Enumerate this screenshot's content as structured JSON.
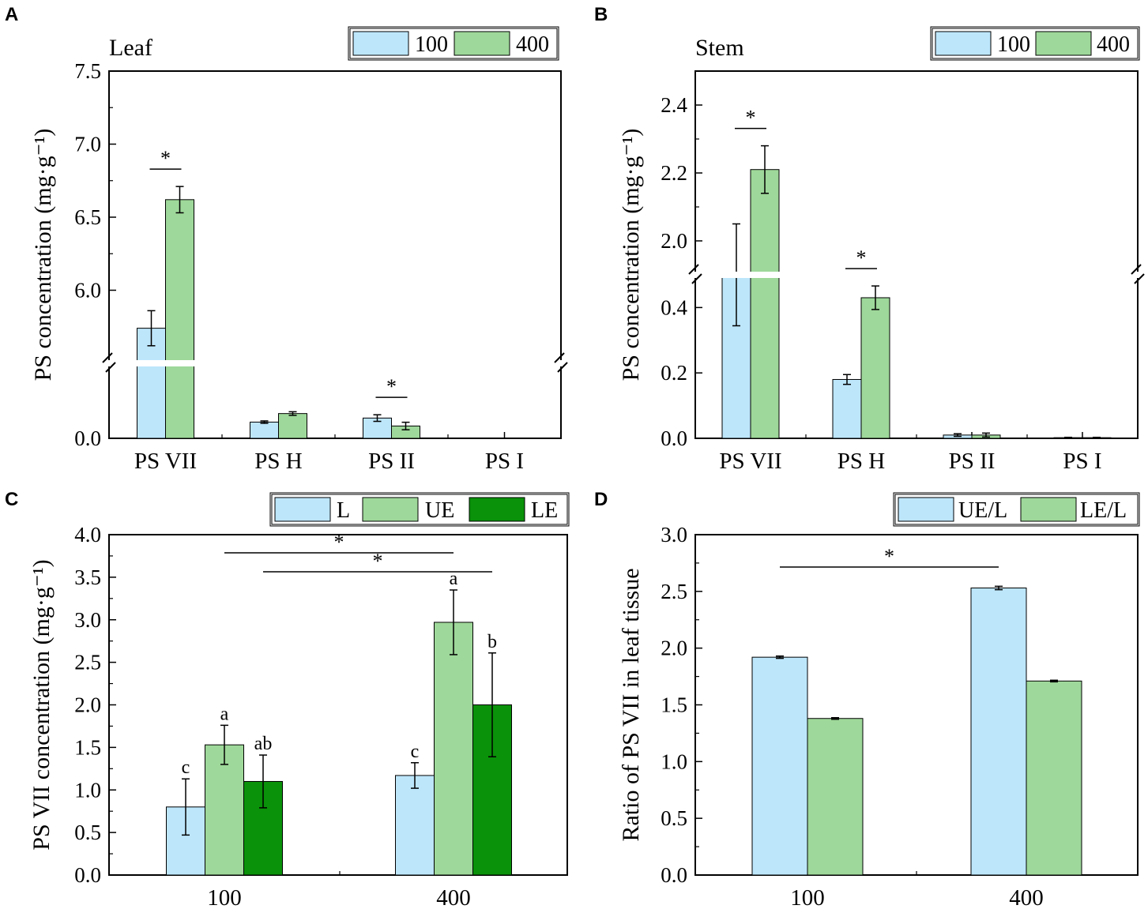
{
  "colors": {
    "light_blue": "#bde6fb",
    "light_green": "#9ed89a",
    "dark_green": "#0a920a",
    "stroke": "#000000"
  },
  "chart_data": [
    {
      "id": "A",
      "panel_label": "A",
      "type": "bar",
      "title": "Leaf",
      "ylabel": "PS  concentration (mg·g⁻¹)",
      "categories": [
        "PS VII",
        "PS H",
        "PS II",
        "PS I"
      ],
      "axis_break": true,
      "lower_ylim": [
        0,
        0.5
      ],
      "upper_ylim": [
        5.5,
        7.5
      ],
      "lower_ticks": [
        "0.0"
      ],
      "upper_ticks": [
        "6.0",
        "6.5",
        "7.0",
        "7.5"
      ],
      "series": [
        {
          "name": "100",
          "color": "#bde6fb",
          "values": [
            5.74,
            0.108,
            0.135,
            0.0
          ],
          "errors": [
            0.12,
            0.008,
            0.022,
            0.0
          ]
        },
        {
          "name": "400",
          "color": "#9ed89a",
          "values": [
            6.62,
            0.165,
            0.082,
            0.0
          ],
          "errors": [
            0.09,
            0.012,
            0.025,
            0.0
          ]
        }
      ],
      "significance": [
        {
          "category": "PS VII",
          "label": "*"
        },
        {
          "category": "PS II",
          "label": "*"
        }
      ]
    },
    {
      "id": "B",
      "panel_label": "B",
      "type": "bar",
      "title": "Stem",
      "ylabel": "PS concentration (mg·g⁻¹)",
      "categories": [
        "PS VII",
        "PS H",
        "PS II",
        "PS I"
      ],
      "axis_break": true,
      "lower_ylim": [
        0,
        0.5
      ],
      "upper_ylim": [
        1.9,
        2.5
      ],
      "lower_ticks": [
        "0.0",
        "0.2",
        "0.4"
      ],
      "upper_ticks": [
        "2.0",
        "2.2",
        "2.4"
      ],
      "series": [
        {
          "name": "100",
          "color": "#bde6fb",
          "values": [
            1.9,
            0.18,
            0.01,
            0.002
          ],
          "errors": [
            0.15,
            0.015,
            0.004,
            0.001
          ]
        },
        {
          "name": "400",
          "color": "#9ed89a",
          "values": [
            2.21,
            0.43,
            0.01,
            0.002
          ],
          "errors": [
            0.07,
            0.036,
            0.006,
            0.001
          ]
        }
      ],
      "significance": [
        {
          "category": "PS VII",
          "label": "*"
        },
        {
          "category": "PS H",
          "label": "*"
        }
      ]
    },
    {
      "id": "C",
      "panel_label": "C",
      "type": "bar",
      "ylabel": "PS  VII concentration (mg·g⁻¹)",
      "categories": [
        "100",
        "400"
      ],
      "ylim": [
        0,
        4.0
      ],
      "ticks": [
        "0.0",
        "0.5",
        "1.0",
        "1.5",
        "2.0",
        "2.5",
        "3.0",
        "3.5",
        "4.0"
      ],
      "series": [
        {
          "name": "L",
          "color": "#bde6fb",
          "values": [
            0.8,
            1.17
          ],
          "errors": [
            0.33,
            0.15
          ],
          "letters": [
            "c",
            "c"
          ]
        },
        {
          "name": "UE",
          "color": "#9ed89a",
          "values": [
            1.53,
            2.97
          ],
          "errors": [
            0.23,
            0.38
          ],
          "letters": [
            "a",
            "a"
          ]
        },
        {
          "name": "LE",
          "color": "#0a920a",
          "values": [
            1.1,
            2.0
          ],
          "errors": [
            0.31,
            0.61
          ],
          "letters": [
            "ab",
            "b"
          ]
        }
      ],
      "significance": [
        {
          "from": "100",
          "to": "400",
          "series": "UE",
          "label": "*"
        },
        {
          "from": "100",
          "to": "400",
          "series": "LE",
          "label": "*"
        }
      ]
    },
    {
      "id": "D",
      "panel_label": "D",
      "type": "bar",
      "ylabel": "Ratio of PS VII in leaf tissue",
      "categories": [
        "100",
        "400"
      ],
      "ylim": [
        0,
        3.0
      ],
      "ticks": [
        "0.0",
        "0.5",
        "1.0",
        "1.5",
        "2.0",
        "2.5",
        "3.0"
      ],
      "series": [
        {
          "name": "UE/L",
          "color": "#bde6fb",
          "values": [
            1.92,
            2.53
          ],
          "errors": [
            0.01,
            0.015
          ]
        },
        {
          "name": "LE/L",
          "color": "#9ed89a",
          "values": [
            1.38,
            1.71
          ],
          "errors": [
            0.007,
            0.007
          ]
        }
      ],
      "significance": [
        {
          "from": "100",
          "to": "400",
          "series": "UE/L",
          "label": "*"
        }
      ]
    }
  ]
}
